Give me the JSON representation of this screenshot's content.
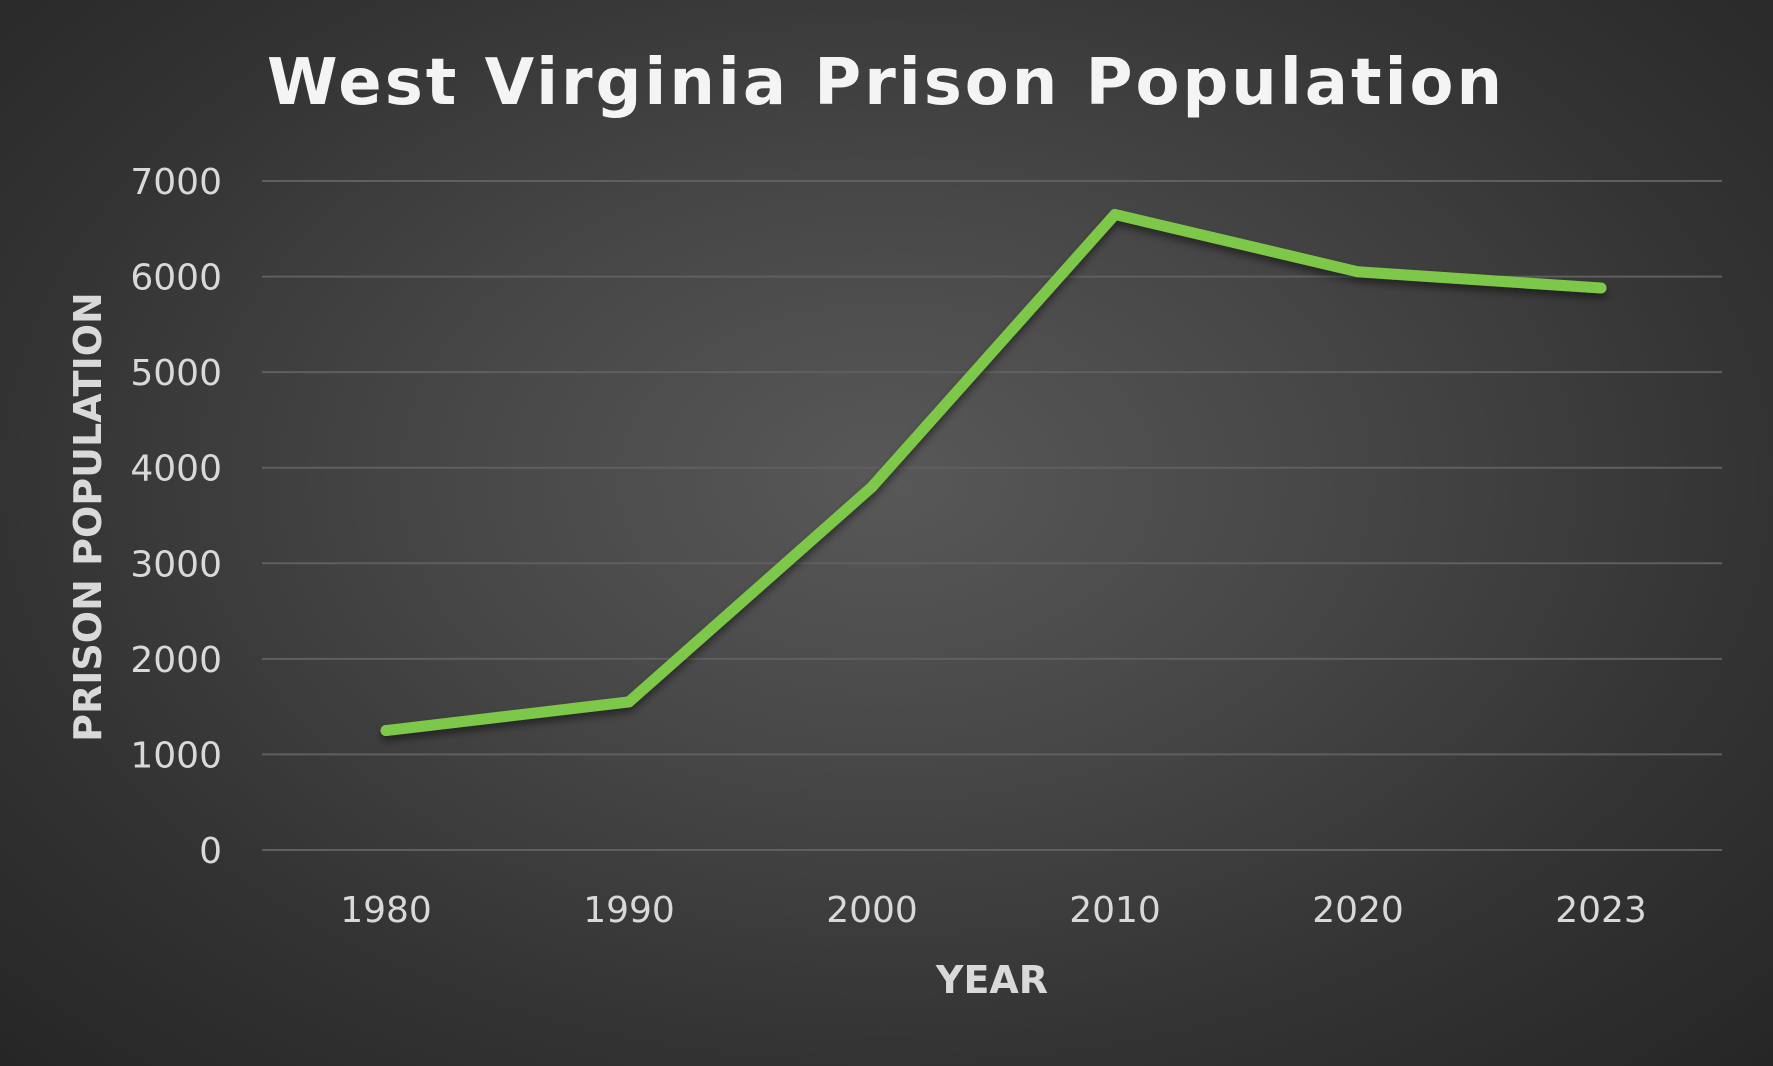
{
  "chart_data": {
    "type": "line",
    "title": "West Virginia Prison Population",
    "xlabel": "YEAR",
    "ylabel": "PRISON POPULATION",
    "categories": [
      "1980",
      "1990",
      "2000",
      "2010",
      "2020",
      "2023"
    ],
    "series": [
      {
        "values": [
          1250,
          1550,
          3800,
          6650,
          6050,
          5880
        ],
        "color": "#7ec84a"
      }
    ],
    "ylim": [
      0,
      7000
    ],
    "yticks": [
      "0",
      "1000",
      "2000",
      "3000",
      "4000",
      "5000",
      "6000",
      "7000"
    ],
    "grid": true,
    "legend": "none"
  },
  "colors": {
    "background": "#474747",
    "text": "#d9d9d9",
    "gridline": "#5f5f5f"
  }
}
